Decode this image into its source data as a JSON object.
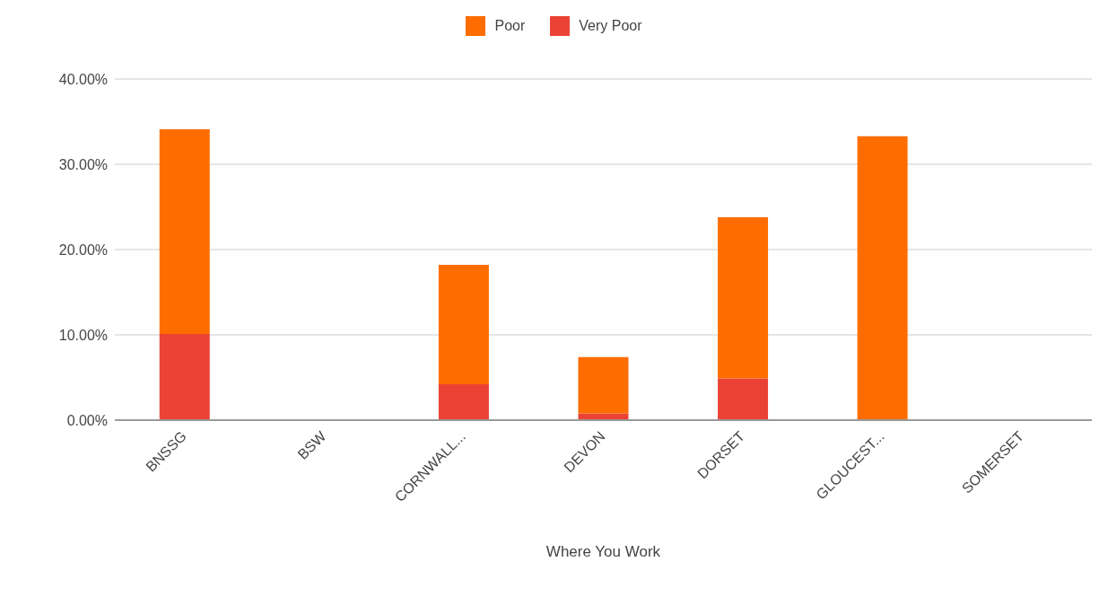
{
  "chart_data": {
    "type": "bar",
    "stacked": true,
    "xlabel": "Where You Work",
    "categories": [
      "BNSSG",
      "BSW",
      "CORNWALL...",
      "DEVON",
      "DORSET",
      "GLOUCEST...",
      "SOMERSET"
    ],
    "series": [
      {
        "name": "Very Poor",
        "color": "#ea4335",
        "values": [
          10.1,
          0,
          4.2,
          0.8,
          4.9,
          0,
          0
        ]
      },
      {
        "name": "Poor",
        "color": "#ff6d01",
        "values": [
          24.0,
          0,
          14.0,
          6.6,
          18.9,
          33.3,
          0
        ]
      }
    ],
    "ylim": [
      0,
      40
    ],
    "yticks": [
      {
        "value": 0,
        "label": "0.00%"
      },
      {
        "value": 10,
        "label": "10.00%"
      },
      {
        "value": 20,
        "label": "20.00%"
      },
      {
        "value": 30,
        "label": "30.00%"
      },
      {
        "value": 40,
        "label": "40.00%"
      }
    ],
    "grid": "y",
    "legend": "top"
  }
}
